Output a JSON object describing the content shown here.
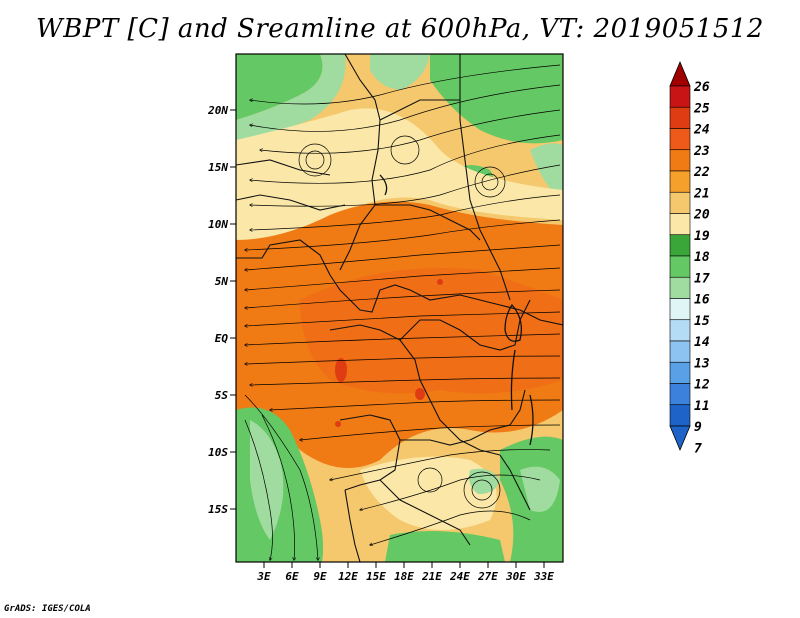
{
  "title": "WBPT [C] and Sreamline at 600hPa, VT: 2019051512",
  "credit": "GrADS: IGES/COLA",
  "map": {
    "lat_labels": [
      "20N",
      "15N",
      "10N",
      "5N",
      "EQ",
      "5S",
      "10S",
      "15S"
    ],
    "lon_labels": [
      "3E",
      "6E",
      "9E",
      "12E",
      "15E",
      "18E",
      "21E",
      "24E",
      "27E",
      "30E",
      "33E"
    ]
  },
  "colorbar": {
    "levels": [
      "26",
      "25",
      "24",
      "23",
      "22",
      "21",
      "20",
      "19",
      "18",
      "17",
      "16",
      "15",
      "14",
      "13",
      "12",
      "11",
      "9",
      "7"
    ],
    "colors": [
      "#a00000",
      "#c81414",
      "#e03c14",
      "#ee5a1a",
      "#f07a14",
      "#f5a02a",
      "#f5c86e",
      "#fbe8a8",
      "#3aa63a",
      "#64c864",
      "#a0dca0",
      "#e0f5f5",
      "#b4dcf5",
      "#8cc3f0",
      "#5aa0e6",
      "#3c82dc",
      "#1e64c8"
    ]
  }
}
